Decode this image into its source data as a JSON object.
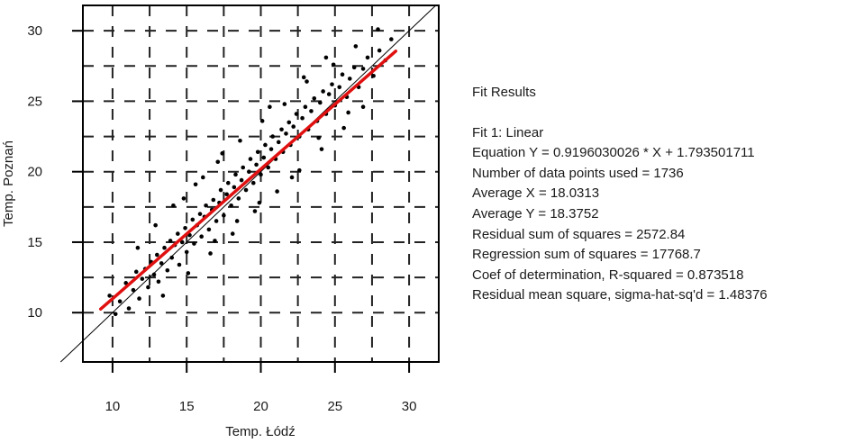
{
  "chart_data": {
    "type": "scatter",
    "title": "",
    "xlabel": "Temp. Łódź",
    "ylabel": "Temp. Poznań",
    "xlim": [
      8,
      32
    ],
    "ylim": [
      6.5,
      31.8
    ],
    "x_ticks": [
      10,
      15,
      20,
      25,
      30
    ],
    "y_ticks": [
      10,
      15,
      20,
      25,
      30
    ],
    "x_tick_labels": [
      "10",
      "15",
      "20",
      "25",
      "30"
    ],
    "y_tick_labels": [
      "10",
      "15",
      "20",
      "25",
      "30"
    ],
    "grid": true,
    "grid_style": "dashed",
    "grid_x": [
      10,
      12.5,
      15,
      17.5,
      20,
      22.5,
      25,
      27.5,
      30
    ],
    "grid_y": [
      10,
      12.5,
      15,
      17.5,
      20,
      22.5,
      25,
      27.5,
      30
    ],
    "series": [
      {
        "type": "scatter",
        "color": "#000000",
        "n": 1736,
        "x_mean": 18.0313,
        "y_mean": 18.3752,
        "points": [
          [
            9.8,
            11.2
          ],
          [
            10.2,
            9.9
          ],
          [
            10.5,
            10.8
          ],
          [
            10.9,
            12.1
          ],
          [
            11.1,
            10.3
          ],
          [
            11.4,
            11.6
          ],
          [
            11.6,
            12.9
          ],
          [
            11.8,
            11.0
          ],
          [
            12.0,
            12.4
          ],
          [
            12.2,
            13.1
          ],
          [
            12.4,
            11.8
          ],
          [
            12.6,
            13.6
          ],
          [
            12.8,
            12.7
          ],
          [
            13.0,
            14.1
          ],
          [
            13.1,
            12.2
          ],
          [
            13.3,
            13.5
          ],
          [
            13.5,
            14.6
          ],
          [
            13.7,
            13.0
          ],
          [
            13.9,
            15.1
          ],
          [
            14.0,
            13.9
          ],
          [
            14.2,
            14.8
          ],
          [
            14.4,
            15.6
          ],
          [
            14.5,
            13.4
          ],
          [
            14.7,
            15.0
          ],
          [
            14.9,
            16.0
          ],
          [
            15.0,
            14.3
          ],
          [
            15.2,
            15.5
          ],
          [
            15.4,
            16.6
          ],
          [
            15.5,
            14.9
          ],
          [
            15.7,
            16.2
          ],
          [
            15.9,
            17.0
          ],
          [
            16.0,
            15.4
          ],
          [
            16.2,
            16.8
          ],
          [
            16.3,
            17.6
          ],
          [
            16.5,
            15.9
          ],
          [
            16.7,
            17.3
          ],
          [
            16.8,
            18.0
          ],
          [
            17.0,
            16.5
          ],
          [
            17.2,
            17.8
          ],
          [
            17.3,
            18.7
          ],
          [
            17.5,
            16.9
          ],
          [
            17.7,
            18.4
          ],
          [
            17.8,
            19.2
          ],
          [
            18.0,
            17.6
          ],
          [
            18.2,
            18.9
          ],
          [
            18.3,
            19.8
          ],
          [
            18.5,
            18.1
          ],
          [
            18.7,
            19.4
          ],
          [
            18.8,
            20.3
          ],
          [
            19.0,
            18.7
          ],
          [
            19.2,
            20.0
          ],
          [
            19.3,
            20.9
          ],
          [
            19.5,
            19.2
          ],
          [
            19.7,
            20.5
          ],
          [
            19.8,
            21.4
          ],
          [
            20.0,
            19.8
          ],
          [
            20.2,
            21.0
          ],
          [
            20.3,
            21.9
          ],
          [
            20.5,
            20.3
          ],
          [
            20.7,
            21.6
          ],
          [
            20.8,
            22.5
          ],
          [
            21.0,
            20.9
          ],
          [
            21.2,
            22.1
          ],
          [
            21.4,
            23.0
          ],
          [
            21.5,
            21.4
          ],
          [
            21.7,
            22.7
          ],
          [
            21.9,
            23.5
          ],
          [
            22.0,
            21.9
          ],
          [
            22.2,
            23.2
          ],
          [
            22.4,
            24.1
          ],
          [
            22.6,
            22.5
          ],
          [
            22.8,
            23.8
          ],
          [
            23.0,
            24.6
          ],
          [
            23.2,
            23.0
          ],
          [
            23.4,
            24.3
          ],
          [
            23.6,
            25.2
          ],
          [
            23.8,
            23.6
          ],
          [
            24.0,
            24.9
          ],
          [
            24.2,
            25.7
          ],
          [
            24.4,
            24.1
          ],
          [
            24.6,
            25.5
          ],
          [
            24.8,
            26.2
          ],
          [
            25.0,
            24.7
          ],
          [
            25.3,
            26.0
          ],
          [
            25.5,
            26.9
          ],
          [
            25.8,
            25.3
          ],
          [
            26.0,
            26.6
          ],
          [
            26.3,
            27.4
          ],
          [
            26.6,
            26.0
          ],
          [
            26.9,
            27.3
          ],
          [
            27.2,
            28.1
          ],
          [
            27.6,
            26.8
          ],
          [
            28.0,
            28.6
          ],
          [
            28.4,
            27.9
          ],
          [
            28.8,
            29.4
          ],
          [
            27.9,
            30.1
          ],
          [
            26.4,
            28.9
          ],
          [
            24.9,
            27.6
          ],
          [
            23.1,
            26.4
          ],
          [
            21.6,
            24.8
          ],
          [
            20.1,
            23.6
          ],
          [
            18.6,
            22.2
          ],
          [
            17.1,
            20.7
          ],
          [
            15.6,
            19.1
          ],
          [
            14.1,
            17.6
          ],
          [
            12.9,
            16.2
          ],
          [
            11.7,
            14.6
          ],
          [
            13.4,
            11.2
          ],
          [
            15.1,
            12.8
          ],
          [
            16.6,
            14.2
          ],
          [
            18.1,
            15.6
          ],
          [
            19.6,
            17.2
          ],
          [
            21.1,
            18.6
          ],
          [
            22.6,
            20.1
          ],
          [
            24.1,
            21.6
          ],
          [
            25.6,
            23.1
          ],
          [
            26.9,
            24.6
          ],
          [
            19.9,
            17.8
          ],
          [
            18.4,
            16.5
          ],
          [
            16.9,
            15.1
          ],
          [
            22.1,
            19.6
          ],
          [
            23.9,
            22.4
          ],
          [
            25.9,
            24.2
          ],
          [
            17.4,
            21.3
          ],
          [
            16.1,
            19.6
          ],
          [
            14.8,
            18.1
          ],
          [
            20.6,
            24.6
          ],
          [
            22.9,
            26.7
          ],
          [
            24.4,
            28.1
          ]
        ]
      }
    ],
    "fit_line": {
      "type": "line",
      "color": "#e01010",
      "slope": 0.9196030026,
      "intercept": 1.793501711,
      "x_range": [
        9.2,
        29.1
      ]
    },
    "reference_line": {
      "type": "line",
      "color": "#000000",
      "description": "y = x",
      "x_range": [
        6.5,
        31.8
      ]
    }
  },
  "fit_results": {
    "title": "Fit Results",
    "lines": [
      "Fit 1: Linear",
      "Equation Y = 0.9196030026 * X + 1.793501711",
      "Number of data points used = 1736",
      "Average X = 18.0313",
      "Average Y = 18.3752",
      "Residual sum of squares = 2572.84",
      "Regression sum of squares = 17768.7",
      "Coef of determination, R-squared = 0.873518",
      "Residual mean square, sigma-hat-sq'd = 1.48376"
    ]
  }
}
